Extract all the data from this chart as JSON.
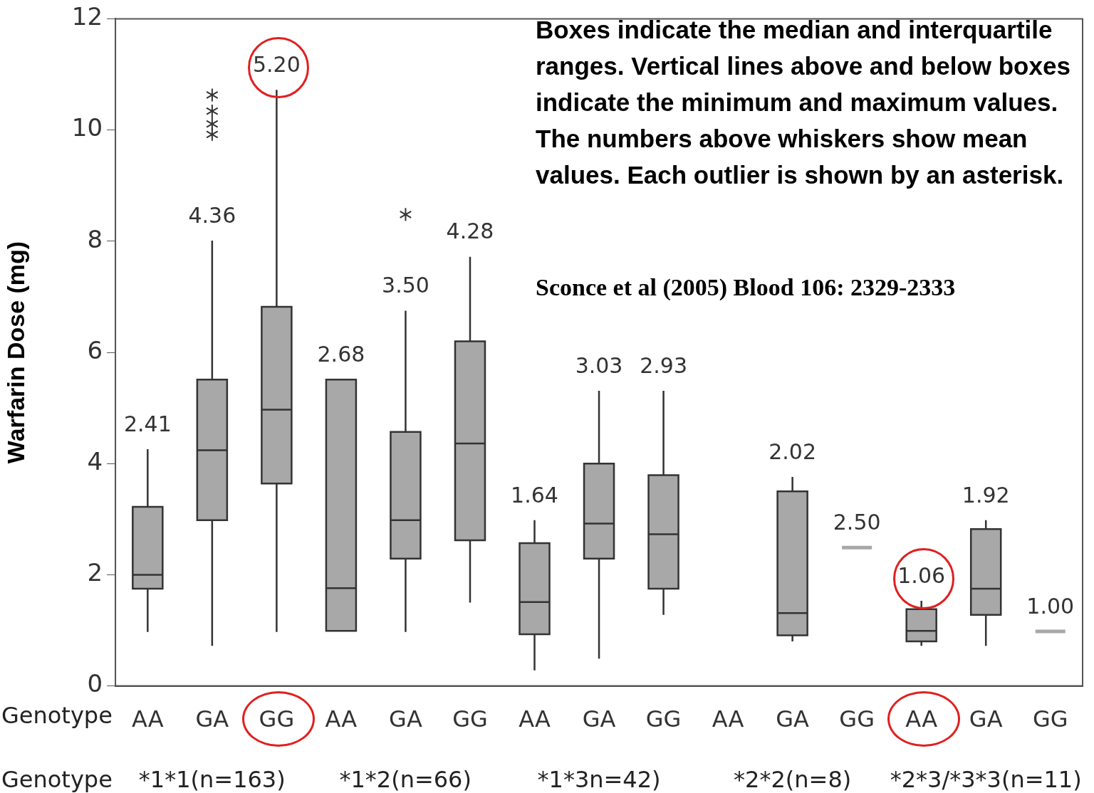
{
  "chart_data": {
    "type": "box",
    "ylabel": "Warfarin Dose (mg)",
    "categories": [
      "AA",
      "GA",
      "GG",
      "AA",
      "GA",
      "GG",
      "AA",
      "GA",
      "GG",
      "AA",
      "GA",
      "GG",
      "AA",
      "GA",
      "GG"
    ],
    "boxes": [
      {
        "low": 0.97,
        "q1": 1.75,
        "median": 2.0,
        "q3": 3.22,
        "high": 4.26
      },
      {
        "low": 0.72,
        "q1": 2.98,
        "median": 4.24,
        "q3": 5.51,
        "high": 8.01,
        "outliers": [
          9.92,
          10.11,
          10.34,
          10.63
        ]
      },
      {
        "low": 0.97,
        "q1": 3.64,
        "median": 4.97,
        "q3": 6.82,
        "high": 10.72
      },
      {
        "low": 0.99,
        "q1": 0.99,
        "median": 1.76,
        "q3": 5.51,
        "high": 5.51
      },
      {
        "low": 0.97,
        "q1": 2.29,
        "median": 2.98,
        "q3": 4.57,
        "high": 6.75,
        "outliers": [
          8.48
        ]
      },
      {
        "low": 1.5,
        "q1": 2.62,
        "median": 4.36,
        "q3": 6.2,
        "high": 7.72
      },
      {
        "low": 0.28,
        "q1": 0.93,
        "median": 1.51,
        "q3": 2.57,
        "high": 2.98
      },
      {
        "low": 0.49,
        "q1": 2.29,
        "median": 2.92,
        "q3": 4.0,
        "high": 5.31
      },
      {
        "low": 1.28,
        "q1": 1.75,
        "median": 2.73,
        "q3": 3.79,
        "high": 5.31
      },
      null,
      {
        "low": 0.8,
        "q1": 0.91,
        "median": 1.31,
        "q3": 3.5,
        "high": 3.76
      },
      {
        "low": 2.49,
        "q1": 2.49,
        "median": 2.49,
        "q3": 2.49,
        "high": 2.49
      },
      {
        "low": 0.72,
        "q1": 0.8,
        "median": 0.99,
        "q3": 1.38,
        "high": 1.53
      },
      {
        "low": 0.72,
        "q1": 1.28,
        "median": 1.75,
        "q3": 2.82,
        "high": 2.98
      },
      {
        "low": 0.98,
        "q1": 0.98,
        "median": 0.98,
        "q3": 0.98,
        "high": 0.98
      }
    ],
    "value_labels": [
      "2.41",
      "4.36",
      "5.20",
      "2.68",
      "3.50",
      "4.28",
      "1.64",
      "3.03",
      "2.93",
      null,
      "2.02",
      "2.50",
      "1.06",
      "1.92",
      "1.00"
    ],
    "color": "#a8a8a8",
    "ylim": [
      0,
      12
    ],
    "yticks": [
      0,
      2,
      4,
      6,
      8,
      10,
      12
    ],
    "grid": false,
    "legend": false,
    "annotations": [
      "Boxes indicate the median and interquartile ranges. Vertical lines above and below boxes indicate the minimum and maximum values. The numbers above whiskers show mean values. Each outlier is shown by an asterisk.",
      "Sconce et al (2005) Blood 106: 2329-2333",
      "Genotype",
      "Genotype",
      "*1*1(n=163)",
      "*1*2(n=66)",
      "*1*3n=42)",
      "*2*2(n=8)",
      "*2*3/*3*3(n=11)"
    ]
  }
}
